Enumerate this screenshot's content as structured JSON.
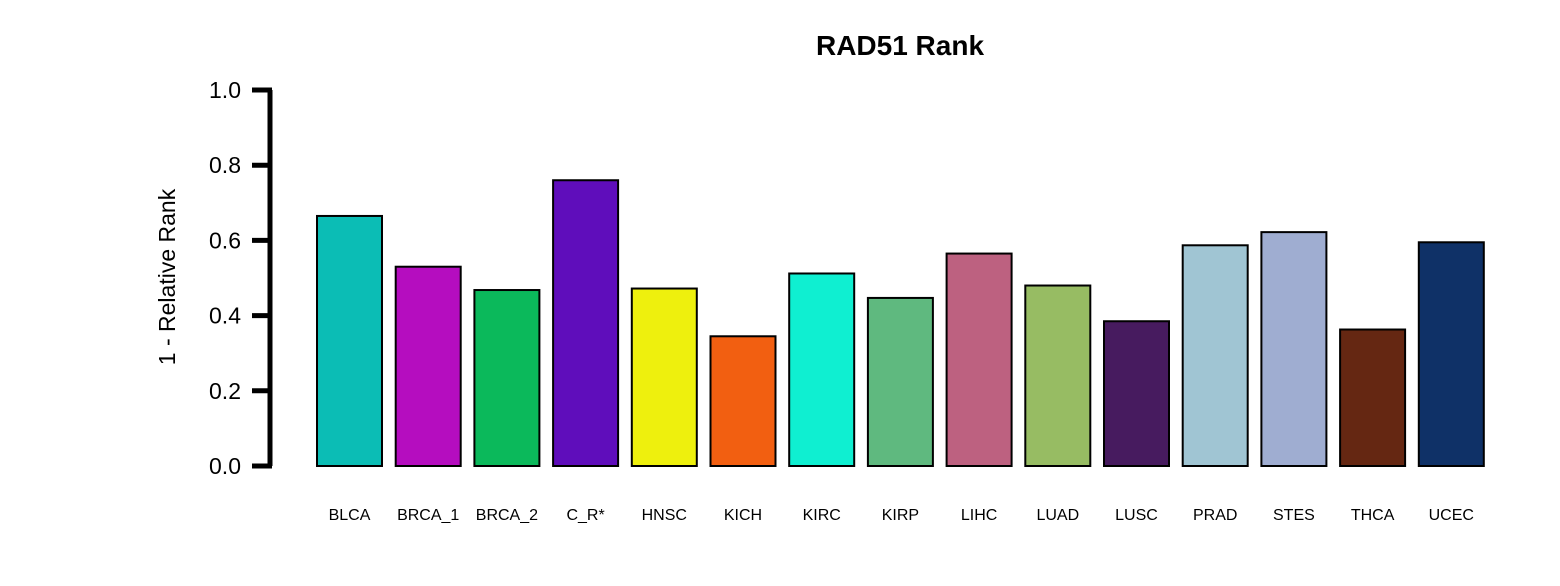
{
  "chart_data": {
    "type": "bar",
    "title": "RAD51 Rank",
    "xlabel": "",
    "ylabel": "1 - Relative Rank",
    "ylim": [
      0,
      1
    ],
    "yticks": [
      "0.0",
      "0.2",
      "0.4",
      "0.6",
      "0.8",
      "1.0"
    ],
    "grid": false,
    "categories": [
      "BLCA",
      "BRCA_1",
      "BRCA_2",
      "C_R*",
      "HNSC",
      "KICH",
      "KIRC",
      "KIRP",
      "LIHC",
      "LUAD",
      "LUSC",
      "PRAD",
      "STES",
      "THCA",
      "UCEC"
    ],
    "values": [
      0.665,
      0.53,
      0.468,
      0.76,
      0.472,
      0.345,
      0.512,
      0.447,
      0.565,
      0.48,
      0.385,
      0.587,
      0.622,
      0.363,
      0.595
    ],
    "colors": [
      "#0BBDB5",
      "#B50DBF",
      "#0BB95B",
      "#5F0DBB",
      "#EEF00D",
      "#F25F11",
      "#0FEFD1",
      "#5FB97F",
      "#BD6180",
      "#97BC63",
      "#471B5F",
      "#A0C5D3",
      "#9FADD1",
      "#652712",
      "#0F3167"
    ]
  }
}
